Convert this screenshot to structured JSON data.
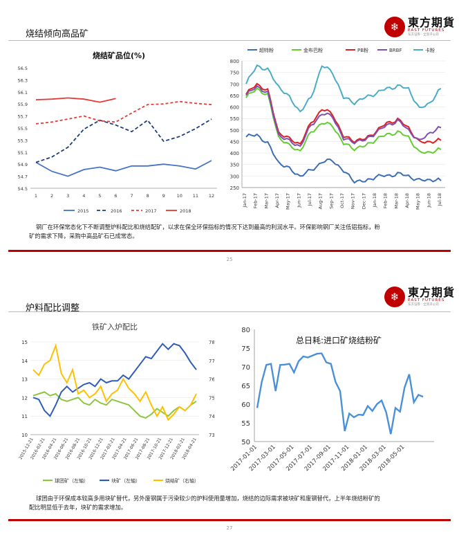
{
  "page1": {
    "title": "烧结倾向高品矿",
    "logo": {
      "cn": "東方期貨",
      "en": "EAST FUTURES",
      "tagline": "东方证券 · 全资子公司"
    },
    "page_number": "25",
    "caption_line1": "钢厂在环保常态化下不断调整炉料配比和烧结配矿，以求在保全环保指标的情况下达到最高的利润水平。环保影响钢厂关注低铝指标，粉",
    "caption_line2": "矿的需求下降，采购中高品矿石已成常态。"
  },
  "page2": {
    "title": "炉料配比调整",
    "logo": {
      "cn": "東方期貨",
      "en": "EAST FUTURES",
      "tagline": "东方证券 · 全资子公司"
    },
    "page_number": "27",
    "caption_line1": "球团由于环保成本较高多用块矿替代，另外废钢属于污染较少的炉料使用量增加，烧结的边际需求被块矿和废钢替代，上半年烧结粉矿的",
    "caption_line2": "配比明显低于去年，块矿的需求增加。"
  },
  "colors": {
    "accent": "#c00000"
  },
  "chart_data": [
    {
      "type": "line",
      "title": "烧结矿品位(%)",
      "x": [
        1,
        2,
        3,
        4,
        5,
        6,
        7,
        8,
        9,
        10,
        11,
        12
      ],
      "ylim": [
        54.5,
        56.5
      ],
      "yticks": [
        "54.5",
        "54.7",
        "54.9",
        "55.1",
        "55.3",
        "55.5",
        "55.7",
        "55.9",
        "56.1",
        "56.3",
        "56.5"
      ],
      "series": [
        {
          "name": "2015",
          "color": "#4472c4",
          "dash": "",
          "values": [
            54.93,
            54.78,
            54.7,
            54.81,
            54.85,
            54.79,
            54.87,
            54.87,
            54.9,
            54.87,
            54.82,
            54.96
          ]
        },
        {
          "name": "2016",
          "color": "#1f3d7a",
          "dash": "5,3",
          "values": [
            54.93,
            55.02,
            55.18,
            55.48,
            55.63,
            55.55,
            55.44,
            55.63,
            55.28,
            55.36,
            55.49,
            55.65
          ]
        },
        {
          "name": "2017",
          "color": "#e53935",
          "dash": "4,3",
          "values": [
            55.57,
            55.6,
            55.65,
            55.7,
            55.62,
            55.6,
            55.75,
            55.89,
            55.9,
            55.94,
            55.91,
            55.89
          ]
        },
        {
          "name": "2018",
          "color": "#e53935",
          "dash": "",
          "values": [
            55.97,
            55.98,
            56.0,
            55.98,
            55.93,
            55.99,
            null,
            null,
            null,
            null,
            null,
            null
          ]
        }
      ]
    },
    {
      "type": "line",
      "title": "",
      "ylim": [
        250,
        800
      ],
      "yticks": [
        "250",
        "300",
        "350",
        "400",
        "450",
        "500",
        "550",
        "600",
        "650",
        "700",
        "750",
        "800"
      ],
      "xticks": [
        "Jan-17",
        "Feb-17",
        "Mar-17",
        "Apr-17",
        "May-17",
        "Jun-17",
        "Jul-17",
        "Aug-17",
        "Sep-17",
        "Oct-17",
        "Nov-17",
        "Dec-17",
        "Jan-18",
        "Feb-18",
        "Mar-18",
        "Apr-18",
        "May-18",
        "Jun-18",
        "Jul-18"
      ],
      "points_per_month": 4,
      "series": [
        {
          "name": "超特粉",
          "color": "#3b6eb4",
          "anchors": [
            470,
            480,
            440,
            360,
            330,
            300,
            325,
            360,
            370,
            320,
            280,
            275,
            300,
            300,
            310,
            300,
            280,
            285,
            280
          ]
        },
        {
          "name": "金布巴粉",
          "color": "#66cc33",
          "anchors": [
            640,
            680,
            650,
            470,
            430,
            410,
            490,
            530,
            520,
            440,
            420,
            430,
            460,
            480,
            490,
            470,
            400,
            405,
            415
          ]
        },
        {
          "name": "PB粉",
          "color": "#e02020",
          "anchors": [
            655,
            700,
            670,
            490,
            460,
            440,
            530,
            590,
            570,
            470,
            455,
            460,
            495,
            530,
            545,
            510,
            445,
            450,
            455
          ]
        },
        {
          "name": "BRBF",
          "color": "#7f4fb4",
          "anchors": [
            650,
            690,
            660,
            480,
            450,
            430,
            520,
            570,
            560,
            460,
            450,
            455,
            490,
            520,
            540,
            500,
            450,
            490,
            510
          ]
        },
        {
          "name": "卡粉",
          "color": "#4bacc6",
          "anchors": [
            700,
            780,
            760,
            690,
            640,
            580,
            640,
            780,
            750,
            640,
            620,
            640,
            660,
            680,
            690,
            680,
            590,
            620,
            680
          ]
        }
      ]
    },
    {
      "type": "line",
      "title": "铁矿入炉配比",
      "ylim_left": [
        10,
        15
      ],
      "ylim_right": [
        73,
        78
      ],
      "yticks_left": [
        "10",
        "11",
        "12",
        "13",
        "14",
        "15"
      ],
      "yticks_right": [
        "73",
        "74",
        "75",
        "76",
        "77",
        "78"
      ],
      "xticks": [
        "2015-12-21",
        "2016-02-21",
        "2016-04-21",
        "2016-06-21",
        "2016-08-21",
        "2016-10-21",
        "2016-12-21",
        "2017-02-21",
        "2017-04-21",
        "2017-06-21",
        "2017-08-21",
        "2017-10-21",
        "2017-12-21",
        "2018-02-21",
        "2018-04-21"
      ],
      "series": [
        {
          "name": "球团矿（左轴）",
          "axis": "left",
          "color": "#8cc63f",
          "values": [
            12.1,
            12.2,
            12.3,
            12.1,
            12.2,
            11.9,
            11.8,
            11.9,
            12.0,
            11.7,
            11.6,
            11.9,
            11.7,
            11.6,
            11.9,
            11.8,
            11.7,
            11.6,
            11.3,
            11.0,
            10.9,
            11.1,
            11.4,
            11.2,
            11.0,
            11.3,
            11.5,
            11.3,
            11.6,
            11.8
          ]
        },
        {
          "name": "块矿（左轴）",
          "axis": "left",
          "color": "#2e5cb8",
          "values": [
            12.0,
            11.9,
            11.3,
            11.0,
            11.6,
            12.3,
            12.6,
            12.3,
            12.5,
            12.7,
            12.8,
            12.6,
            13.0,
            12.8,
            12.9,
            12.9,
            13.2,
            13.0,
            13.4,
            13.8,
            14.2,
            14.1,
            14.5,
            14.9,
            14.6,
            14.9,
            14.8,
            14.4,
            13.9,
            13.5
          ]
        },
        {
          "name": "烧结矿（右轴）",
          "axis": "right",
          "color": "#ffc000",
          "values": [
            76.5,
            76.2,
            76.8,
            77.0,
            77.8,
            76.3,
            75.8,
            76.5,
            75.2,
            75.4,
            75.0,
            75.2,
            75.6,
            74.8,
            75.2,
            75.4,
            76.0,
            75.5,
            75.2,
            74.8,
            75.3,
            74.6,
            74.0,
            74.5,
            73.8,
            74.1,
            74.5,
            74.3,
            74.6,
            75.2
          ]
        }
      ]
    },
    {
      "type": "line",
      "title": "总日耗:进口矿烧结粉矿",
      "ylim": [
        50,
        80
      ],
      "yticks": [
        "50",
        "55",
        "60",
        "65",
        "70",
        "75",
        "80"
      ],
      "xticks": [
        "2017-01-01",
        "2017-03-01",
        "2017-05-01",
        "2017-07-01",
        "2017-09-01",
        "2017-11-01",
        "2018-01-01",
        "2018-03-01",
        "2018-05-01"
      ],
      "series": [
        {
          "name": "总日耗:进口矿烧结粉矿",
          "color": "#4a90d9",
          "values": [
            59,
            66,
            70.5,
            70.8,
            63.5,
            70.5,
            70.6,
            70.8,
            68.5,
            71.5,
            72.8,
            72.5,
            73,
            73.5,
            73.6,
            71.2,
            70.8,
            66,
            63.5,
            52.8,
            57.5,
            56.5,
            57.2,
            57.1,
            59.5,
            58.2,
            60,
            61,
            57.8,
            52,
            59,
            58,
            64.5,
            68,
            60.5,
            62.5,
            62
          ]
        }
      ]
    }
  ]
}
